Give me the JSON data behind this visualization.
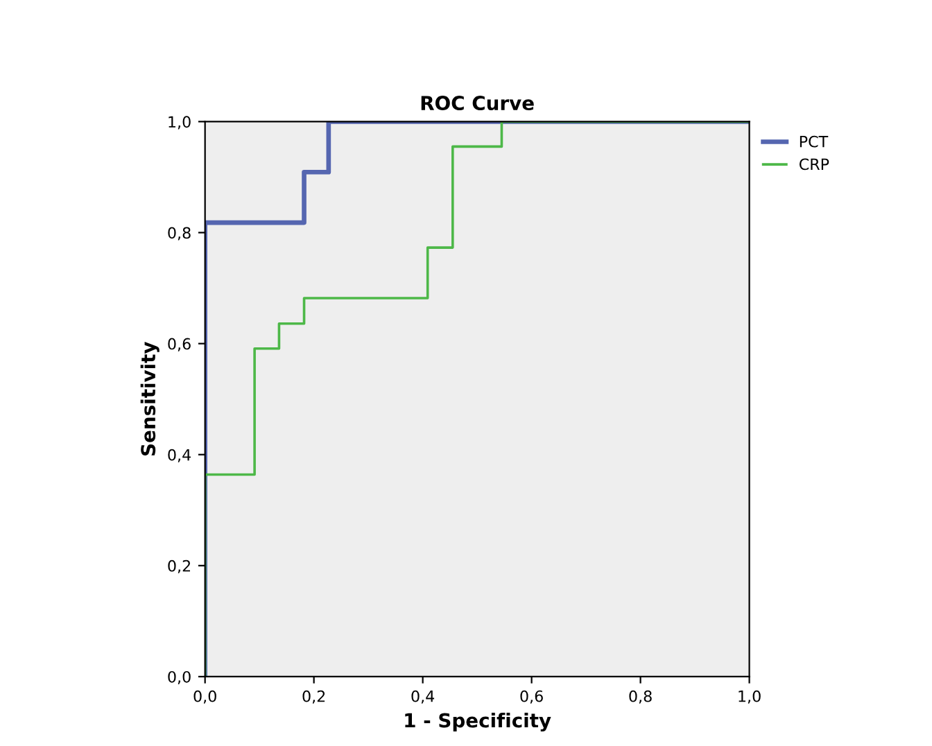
{
  "chart_data": {
    "type": "line",
    "title": "ROC Curve",
    "xlabel": "1 - Specificity",
    "ylabel": "Sensitivity",
    "xlim": [
      0,
      1
    ],
    "ylim": [
      0,
      1
    ],
    "xticks": [
      {
        "value": 0,
        "label": "0,0"
      },
      {
        "value": 0.2,
        "label": "0,2"
      },
      {
        "value": 0.4,
        "label": "0,4"
      },
      {
        "value": 0.6,
        "label": "0,6"
      },
      {
        "value": 0.8,
        "label": "0,8"
      },
      {
        "value": 1,
        "label": "1,0"
      }
    ],
    "yticks": [
      {
        "value": 0,
        "label": "0,0"
      },
      {
        "value": 0.2,
        "label": "0,2"
      },
      {
        "value": 0.4,
        "label": "0,4"
      },
      {
        "value": 0.6,
        "label": "0,6"
      },
      {
        "value": 0.8,
        "label": "0,8"
      },
      {
        "value": 1,
        "label": "1,0"
      }
    ],
    "grid": false,
    "legend": "top right",
    "marker": "none",
    "line_style": "solid",
    "series": [
      {
        "name": "PCT",
        "color": "#5566b0",
        "x": [
          0,
          0,
          0.182,
          0.182,
          0.227,
          0.227,
          1
        ],
        "values": [
          0,
          0.818,
          0.818,
          0.909,
          0.909,
          1,
          1
        ]
      },
      {
        "name": "CRP",
        "color": "#4db848",
        "x": [
          0,
          0,
          0.091,
          0.091,
          0.136,
          0.136,
          0.182,
          0.182,
          0.409,
          0.409,
          0.455,
          0.455,
          0.545,
          0.545,
          1
        ],
        "values": [
          0,
          0.364,
          0.364,
          0.591,
          0.591,
          0.636,
          0.636,
          0.682,
          0.682,
          0.773,
          0.773,
          0.955,
          0.955,
          1,
          1
        ]
      }
    ]
  }
}
